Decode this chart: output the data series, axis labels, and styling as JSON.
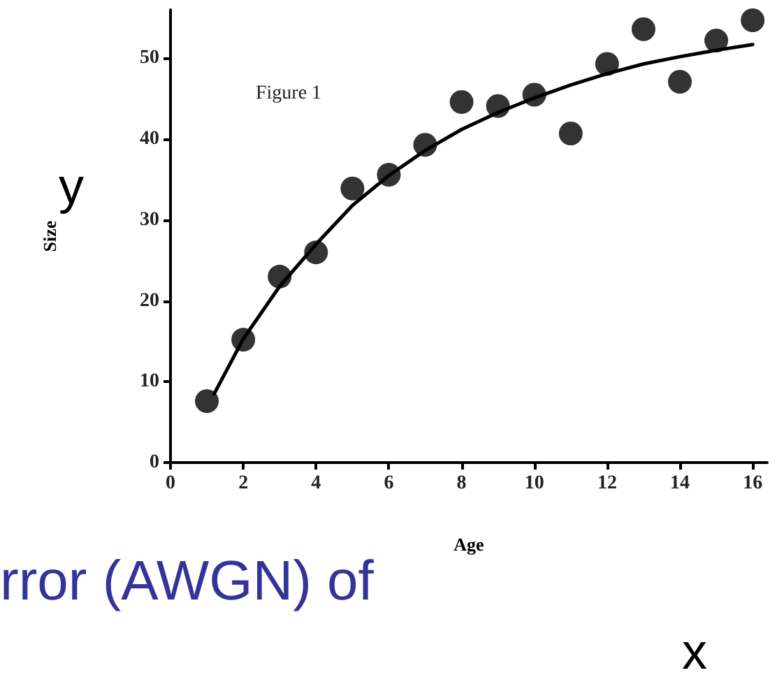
{
  "chart_data": {
    "type": "scatter",
    "xlabel": "Age",
    "ylabel": "Size",
    "annotations": [
      "Figure 1",
      "y",
      "x",
      "rror (AWGN) of"
    ],
    "xlim": [
      0,
      16.4
    ],
    "xticks": [
      0,
      2,
      4,
      6,
      8,
      10,
      12,
      14,
      16
    ],
    "ylim": [
      0,
      56
    ],
    "yticks": [
      0,
      10,
      20,
      30,
      40,
      50
    ],
    "grid": false,
    "marker": "circle",
    "series": [
      {
        "color": "#000000",
        "x": [
          1,
          2,
          3,
          4,
          5,
          6,
          7,
          8,
          9,
          10,
          11,
          12,
          13,
          14,
          15,
          16
        ],
        "values": [
          7.6,
          15.2,
          23.0,
          26.0,
          33.9,
          35.6,
          39.3,
          44.6,
          44.1,
          45.5,
          40.7,
          49.3,
          53.6,
          47.1,
          52.2,
          54.7
        ]
      },
      {
        "type": "line",
        "color": "#000000",
        "marker": "none",
        "line_style": "solid",
        "x": [
          1.2,
          2,
          3,
          4,
          5,
          6,
          7,
          8,
          9,
          10,
          11,
          12,
          13,
          14,
          15,
          16
        ],
        "values": [
          8.5,
          15.3,
          21.8,
          27.0,
          31.8,
          35.5,
          38.6,
          41.2,
          43.3,
          45.1,
          46.7,
          48.1,
          49.3,
          50.2,
          51.0,
          51.7
        ]
      }
    ]
  }
}
